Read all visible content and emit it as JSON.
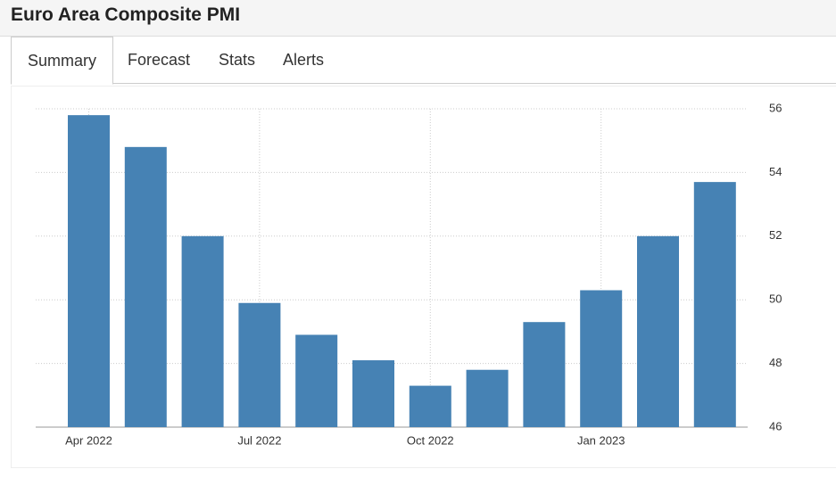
{
  "header": {
    "title": "Euro Area Composite PMI"
  },
  "tabs": [
    "Summary",
    "Forecast",
    "Stats",
    "Alerts"
  ],
  "chart_data": {
    "type": "bar",
    "categories": [
      "Apr 2022",
      null,
      null,
      "Jul 2022",
      null,
      null,
      "Oct 2022",
      null,
      null,
      "Jan 2023",
      null,
      null
    ],
    "values": [
      55.8,
      54.8,
      52.0,
      49.9,
      48.9,
      48.1,
      47.3,
      47.8,
      49.3,
      50.3,
      52.0,
      53.7
    ],
    "color": "#4682b4",
    "ylim": [
      46,
      56
    ],
    "yticks": [
      46,
      48,
      50,
      52,
      54,
      56
    ],
    "grid": true,
    "y_axis_side": "right"
  }
}
